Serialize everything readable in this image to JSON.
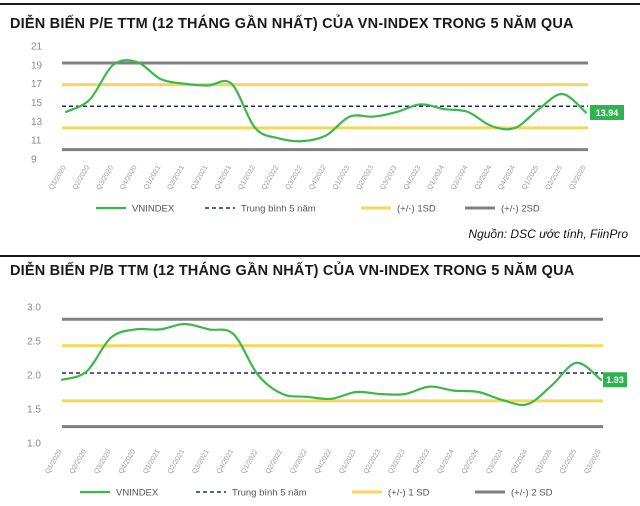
{
  "header": {
    "pe_title": "DIỄN BIẾN P/E TTM (12 THÁNG GẦN NHẤT) CỦA VN-INDEX TRONG 5 NĂM QUA",
    "pb_title": "DIỄN BIẾN P/B TTM (12 THÁNG GẦN NHẤT) CỦA VN-INDEX TRONG 5 NĂM QUA",
    "source": "Nguồn: DSC ước tính, FiinPro"
  },
  "colors": {
    "vnindex": "#3cb84a",
    "mean": "#1f2a6b",
    "sd1": "#f5d75a",
    "sd2": "#808080",
    "badge": "#2fb350"
  },
  "chart_data": [
    {
      "type": "line",
      "title": "DIỄN BIẾN P/E TTM (12 THÁNG GẦN NHẤT) CỦA VN-INDEX TRONG 5 NĂM QUA",
      "categories": [
        "Q1/2020",
        "Q2/2020",
        "Q3/2020",
        "Q4/2020",
        "Q1/2021",
        "Q2/2021",
        "Q3/2021",
        "Q4/2021",
        "Q1/2022",
        "Q2/2022",
        "Q3/2022",
        "Q4/2022",
        "Q1/2023",
        "Q2/2023",
        "Q3/2023",
        "Q4/2023",
        "Q1/2024",
        "Q2/2024",
        "Q3/2024",
        "Q4/2024",
        "Q1/2025",
        "Q2/2025",
        "Q3/2025"
      ],
      "yticks": [
        "21",
        "19",
        "17",
        "15",
        "13",
        "11",
        "9"
      ],
      "ylim": [
        9,
        21
      ],
      "series": [
        {
          "name": "VNINDEX",
          "style": "solid",
          "color": "#3cb84a",
          "values": [
            14.0,
            15.3,
            19.0,
            19.3,
            17.5,
            17.0,
            16.8,
            17.0,
            12.3,
            11.2,
            10.9,
            11.5,
            13.5,
            13.5,
            14.0,
            14.8,
            14.3,
            14.0,
            12.5,
            12.3,
            14.3,
            15.9,
            13.94
          ]
        },
        {
          "name": "Trung bình 5 năm",
          "style": "dashed",
          "color": "#1f2a6b",
          "constant": 14.6
        },
        {
          "name": "(+/-) 1SD",
          "style": "solid",
          "color": "#f5d75a",
          "constant": [
            16.9,
            12.3
          ]
        },
        {
          "name": "(+/-) 2SD",
          "style": "solid",
          "color": "#808080",
          "constant": [
            19.2,
            10.0
          ]
        }
      ],
      "last_value_label": "13.94",
      "legend_position": "bottom"
    },
    {
      "type": "line",
      "title": "DIỄN BIẾN P/B TTM (12 THÁNG GẦN NHẤT) CỦA VN-INDEX TRONG 5 NĂM QUA",
      "categories": [
        "Q1/2020",
        "Q2/2020",
        "Q3/2020",
        "Q4/2020",
        "Q1/2021",
        "Q2/2021",
        "Q3/2021",
        "Q4/2021",
        "Q1/2022",
        "Q2/2022",
        "Q3/2022",
        "Q4/2022",
        "Q1/2023",
        "Q2/2023",
        "Q3/2023",
        "Q4/2023",
        "Q1/2024",
        "Q2/2024",
        "Q3/2024",
        "Q4/2024",
        "Q1/2025",
        "Q2/2025",
        "Q3/2025"
      ],
      "yticks": [
        "3.0",
        "2.5",
        "2.0",
        "1.5",
        "1.0"
      ],
      "ylim": [
        1.0,
        3.0
      ],
      "series": [
        {
          "name": "VNINDEX",
          "style": "solid",
          "color": "#3cb84a",
          "values": [
            1.93,
            2.05,
            2.55,
            2.67,
            2.67,
            2.75,
            2.67,
            2.6,
            2.0,
            1.72,
            1.68,
            1.65,
            1.75,
            1.72,
            1.72,
            1.83,
            1.77,
            1.75,
            1.63,
            1.57,
            1.85,
            2.18,
            1.93
          ]
        },
        {
          "name": "Trung bình 5 năm",
          "style": "dashed",
          "color": "#1f2a6b",
          "constant": 2.03
        },
        {
          "name": "(+/-) 1 SD",
          "style": "solid",
          "color": "#f5d75a",
          "constant": [
            2.43,
            1.62
          ]
        },
        {
          "name": "(+/-) 2 SD",
          "style": "solid",
          "color": "#808080",
          "constant": [
            2.82,
            1.24
          ]
        }
      ],
      "last_value_label": "1.93",
      "legend_position": "bottom"
    }
  ]
}
